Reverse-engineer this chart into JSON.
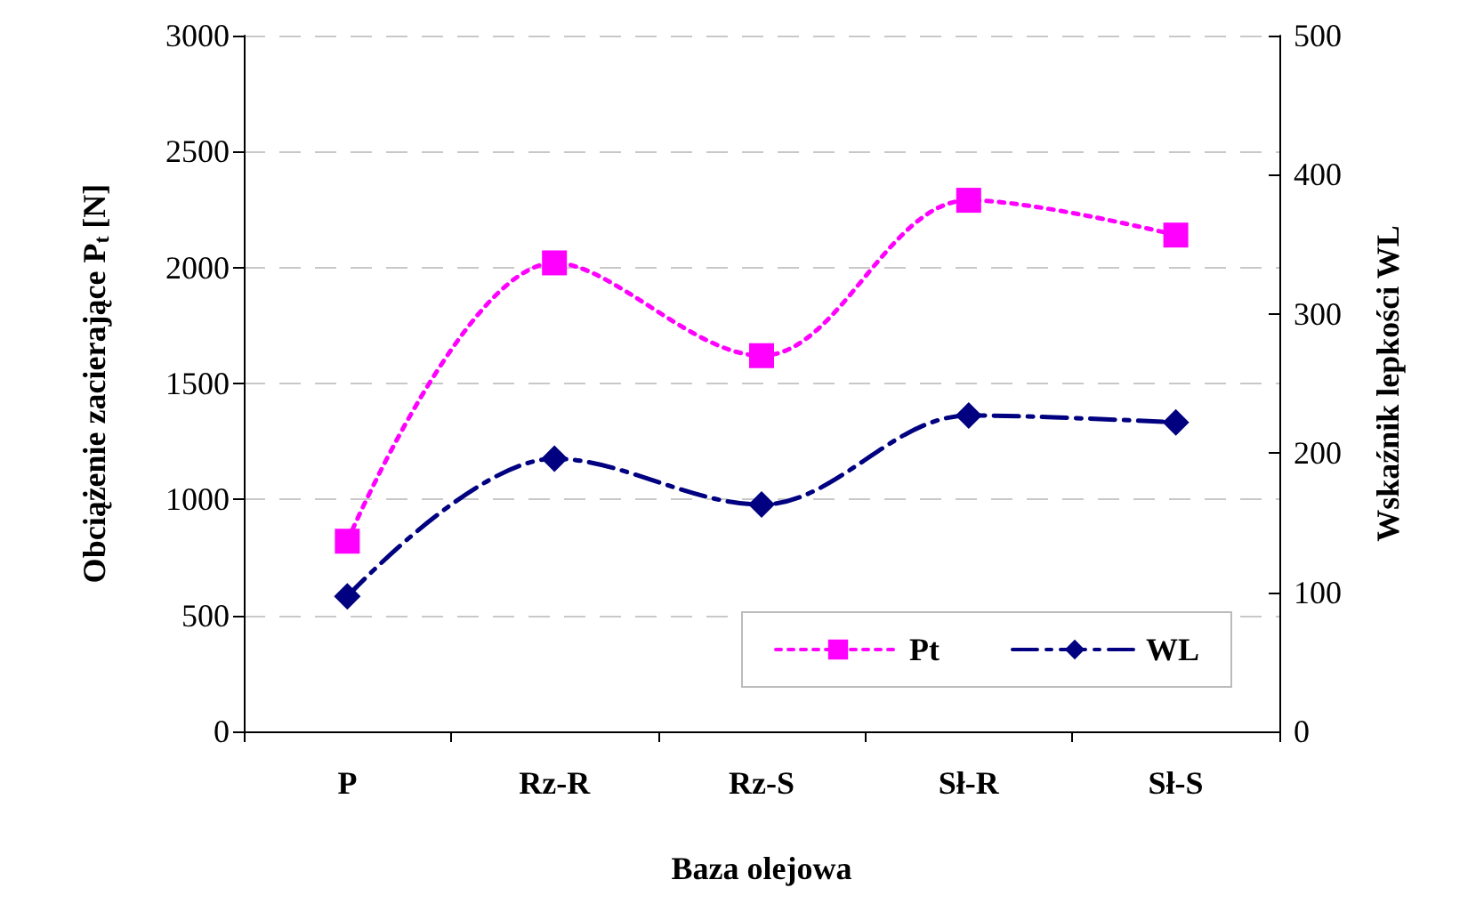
{
  "chart_data": {
    "type": "line",
    "xlabel": "Baza olejowa",
    "ylabel": "Obciążenie zacierające P$_{t}$ [N]",
    "y2label": "Wskaźnik lepkości WL",
    "categories": [
      "P",
      "Rz-R",
      "Rz-S",
      "Sł-R",
      "Sł-S"
    ],
    "series": [
      {
        "name": "Pt",
        "color": "#ff00ff",
        "values": [
          820,
          2020,
          1620,
          2290,
          2140
        ],
        "marker": "square",
        "line_style": "dotted"
      },
      {
        "name": "WL",
        "color": "#000080",
        "values": [
          97,
          196,
          163,
          227,
          222
        ],
        "marker": "diamond",
        "line_style": "dashed",
        "axis": "y2"
      }
    ],
    "ylim": [
      0,
      3000
    ],
    "yticks": [
      0,
      500,
      1000,
      1500,
      2000,
      2500,
      3000
    ],
    "y2lim": [
      0,
      500
    ],
    "y2ticks": [
      0,
      100,
      200,
      300,
      400,
      500
    ],
    "grid": "y",
    "legend": "bottom right"
  }
}
